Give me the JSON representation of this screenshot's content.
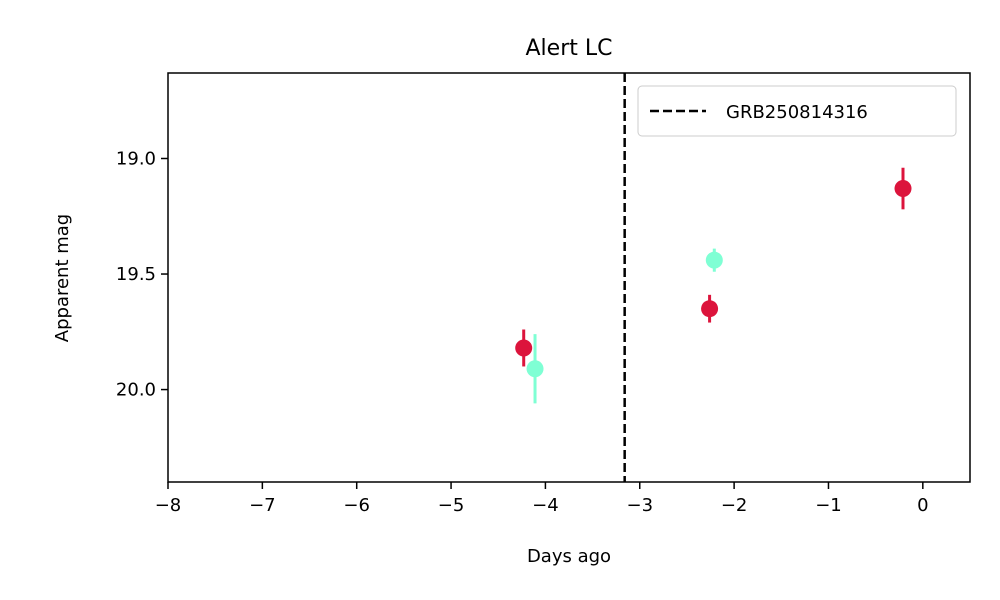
{
  "chart_data": {
    "type": "scatter",
    "title": "Alert LC",
    "xlabel": "Days ago",
    "ylabel": "Apparent mag",
    "xlim": [
      -8,
      0.5
    ],
    "ylim": [
      20.4,
      18.63
    ],
    "y_inverted": true,
    "x_ticks": [
      -8,
      -7,
      -6,
      -5,
      -4,
      -3,
      -2,
      -1,
      0
    ],
    "x_tick_labels": [
      "−8",
      "−7",
      "−6",
      "−5",
      "−4",
      "−3",
      "−2",
      "−1",
      "0"
    ],
    "y_ticks": [
      19.0,
      19.5,
      20.0
    ],
    "y_tick_labels": [
      "19.0",
      "19.5",
      "20.0"
    ],
    "grid": false,
    "legend": {
      "placement": "top-right",
      "entries": [
        "GRB250814316"
      ]
    },
    "vline": {
      "x": -3.16,
      "label": "GRB250814316",
      "style": "dashed",
      "color": "#000000"
    },
    "series": [
      {
        "color": "#dc143c",
        "points": [
          {
            "x": -4.23,
            "y": 19.82,
            "err": 0.08
          },
          {
            "x": -2.26,
            "y": 19.65,
            "err": 0.06
          },
          {
            "x": -0.21,
            "y": 19.13,
            "err": 0.09
          }
        ]
      },
      {
        "color": "#7fffd4",
        "points": [
          {
            "x": -4.11,
            "y": 19.91,
            "err": 0.15
          },
          {
            "x": -2.21,
            "y": 19.44,
            "err": 0.05
          }
        ]
      }
    ]
  }
}
